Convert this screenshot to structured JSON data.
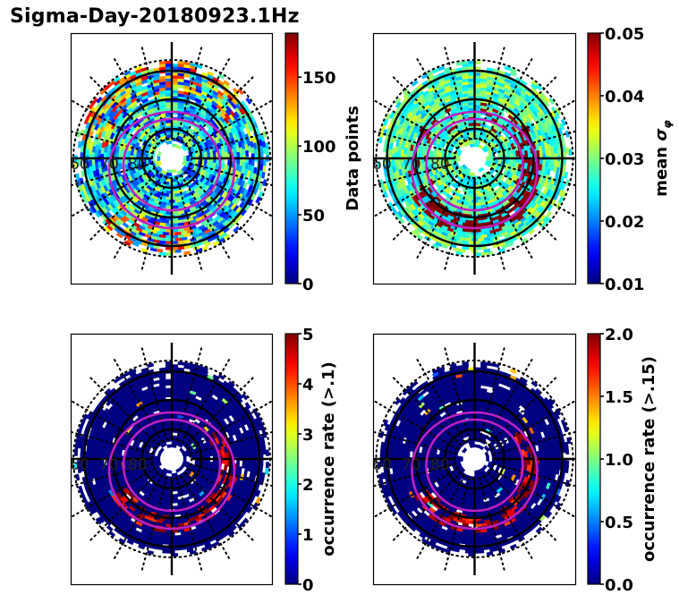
{
  "figure": {
    "title": "Sigma-Day-20180923.1Hz"
  },
  "chart_data": [
    {
      "type": "heatmap",
      "projection": "polar",
      "panel": "top-left",
      "title": "",
      "colormap": "jet",
      "colorbar": {
        "label": "Data points",
        "range": [
          0,
          182
        ],
        "ticks": [
          0,
          50,
          100,
          150
        ],
        "tick_labels": [
          "0",
          "50",
          "100",
          "150"
        ]
      },
      "latitude_ring_labels": [
        "60",
        "70",
        "80"
      ],
      "latitude_rings_deg": [
        60,
        70,
        80
      ],
      "dominant_values": "mostly 20-130, highest (>150) near 60-70 deg on dawn/noon side",
      "overlay": "two magenta auroral oval boundaries"
    },
    {
      "type": "heatmap",
      "projection": "polar",
      "panel": "top-right",
      "title": "",
      "colormap": "jet",
      "colorbar": {
        "label": "mean σφ",
        "range": [
          0.01,
          0.05
        ],
        "ticks": [
          0.01,
          0.02,
          0.03,
          0.04,
          0.05
        ],
        "tick_labels": [
          "0.01",
          "0.02",
          "0.03",
          "0.04",
          "0.05"
        ]
      },
      "latitude_ring_labels": [
        "60",
        "70",
        "80"
      ],
      "latitude_rings_deg": [
        60,
        70,
        80
      ],
      "dominant_values": "background ~0.025-0.03, saturated (>=0.05) along oval on night/dusk side",
      "overlay": "two magenta auroral oval boundaries"
    },
    {
      "type": "heatmap",
      "projection": "polar",
      "panel": "bottom-left",
      "title": "",
      "colormap": "jet",
      "colorbar": {
        "label": "occurrence rate (>.1)",
        "range": [
          0,
          5
        ],
        "ticks": [
          0,
          1,
          2,
          3,
          4,
          5
        ],
        "tick_labels": [
          "0",
          "1",
          "2",
          "3",
          "4",
          "5"
        ]
      },
      "latitude_ring_labels": [
        "60",
        "70",
        "80"
      ],
      "latitude_rings_deg": [
        60,
        70,
        80
      ],
      "dominant_values": "mostly 0, values >=5 along oval on night/dusk side",
      "overlay": "two magenta auroral oval boundaries"
    },
    {
      "type": "heatmap",
      "projection": "polar",
      "panel": "bottom-right",
      "title": "",
      "colormap": "jet",
      "colorbar": {
        "label": "occurrence rate (>.15)",
        "range": [
          0.0,
          2.0
        ],
        "ticks": [
          0.0,
          0.5,
          1.0,
          1.5,
          2.0
        ],
        "tick_labels": [
          "0.0",
          "0.5",
          "1.0",
          "1.5",
          "2.0"
        ]
      },
      "latitude_ring_labels": [
        "60",
        "70",
        "80"
      ],
      "latitude_rings_deg": [
        60,
        70,
        80
      ],
      "dominant_values": "mostly 0, values >=2 along oval on night/dusk side",
      "overlay": "two magenta auroral oval boundaries"
    }
  ]
}
